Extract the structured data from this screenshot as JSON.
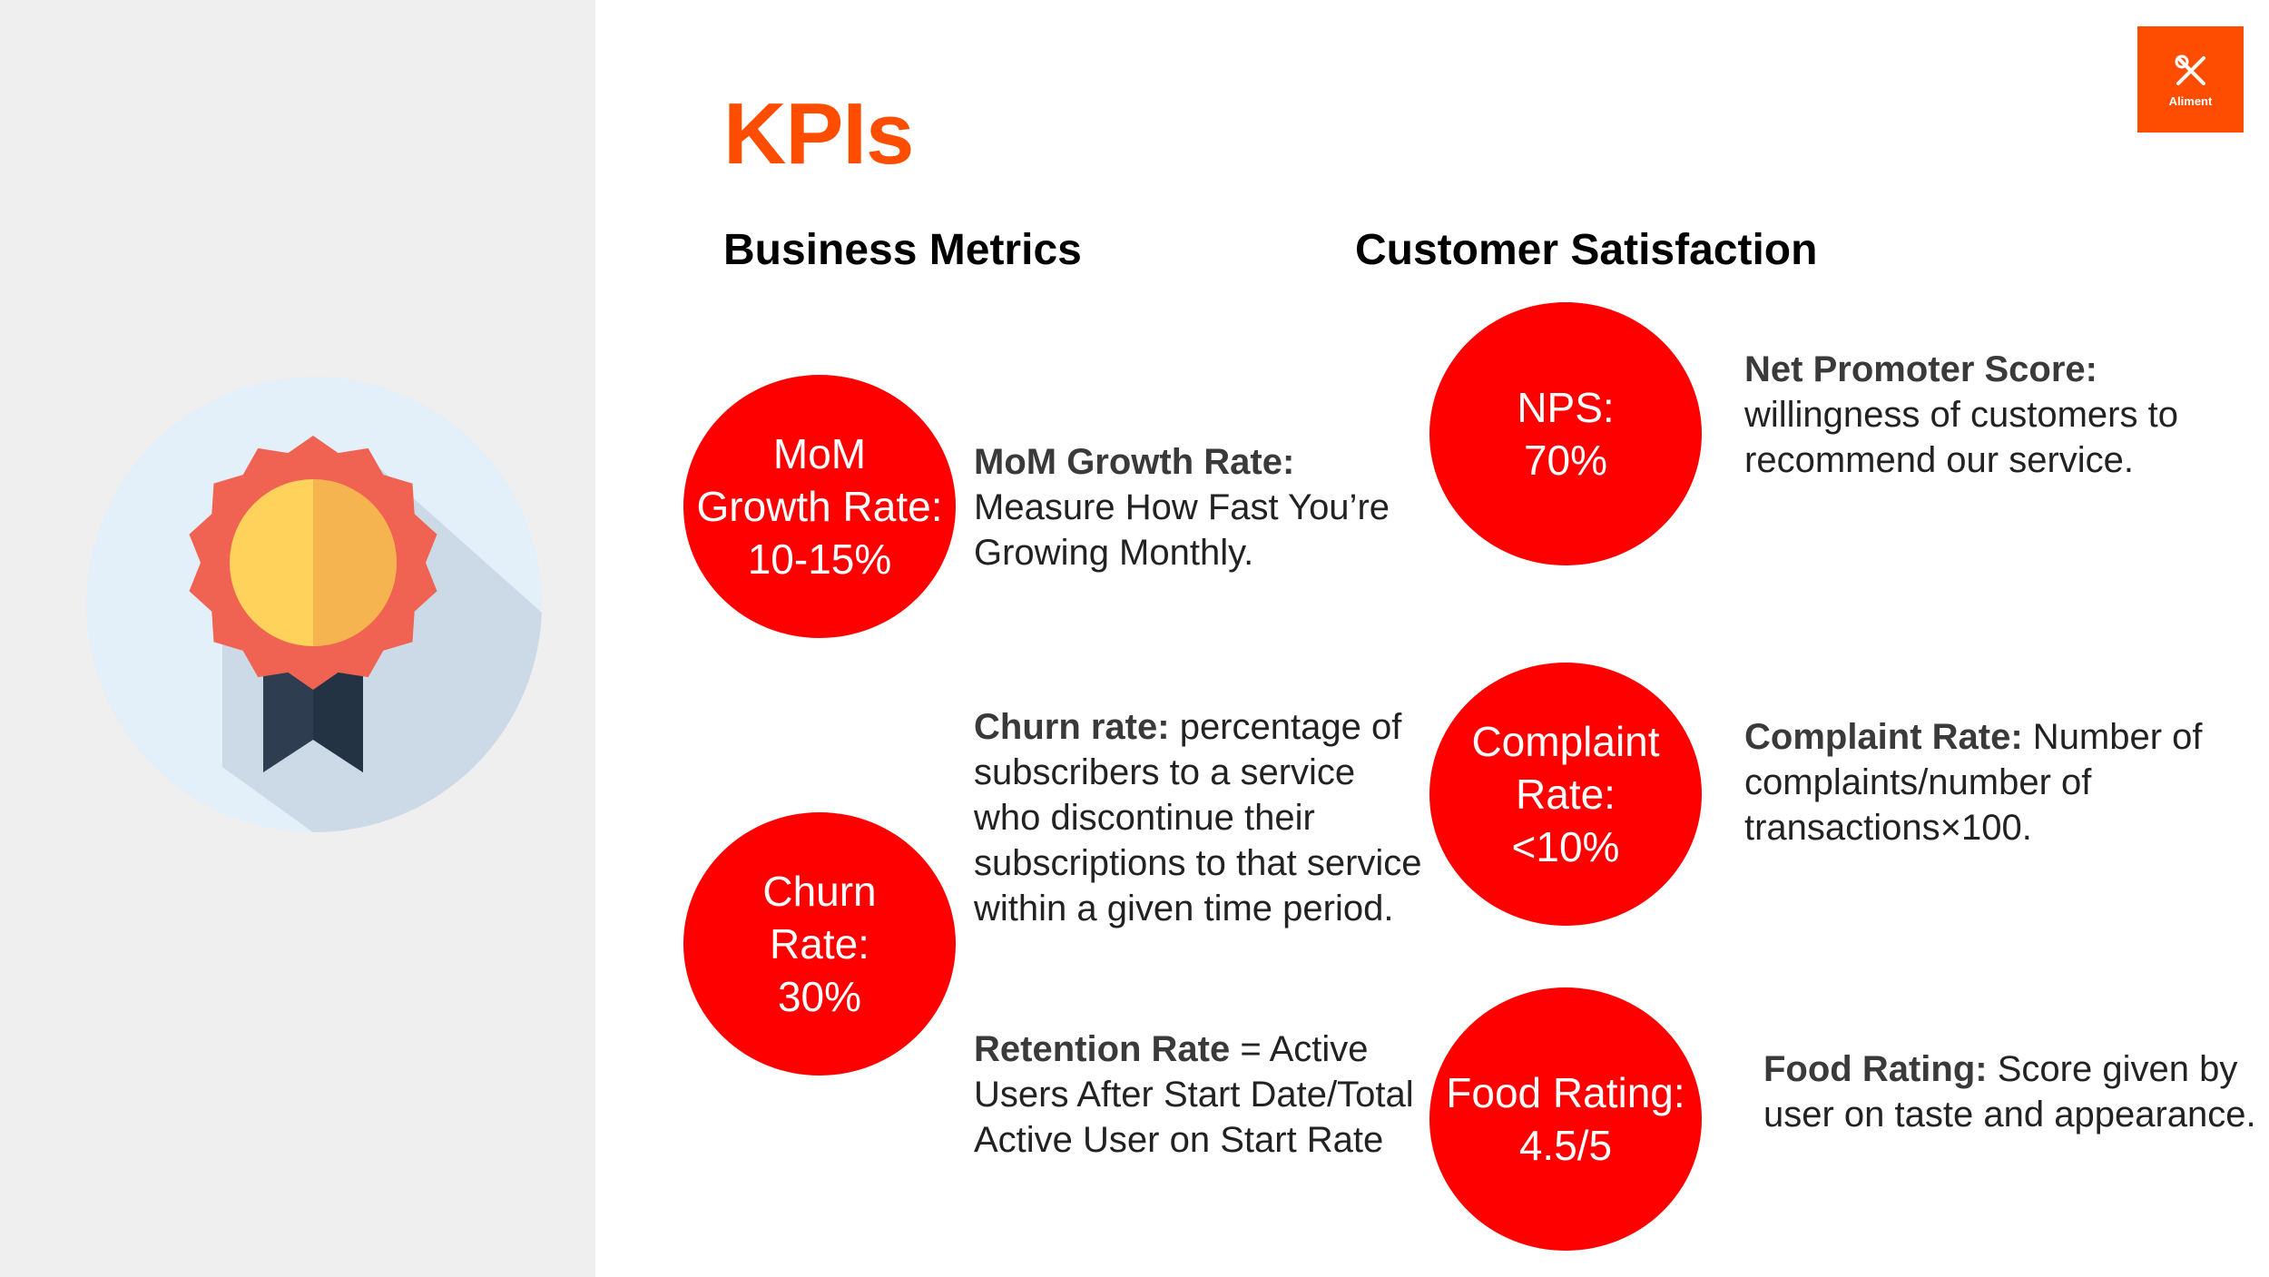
{
  "title": "KPIs",
  "brand": {
    "name": "Aliment",
    "accent": "#ff4d00",
    "circle_color": "#ff0000"
  },
  "sections": {
    "business": "Business Metrics",
    "customer": "Customer Satisfaction"
  },
  "kpis": {
    "mom": {
      "circle": "MoM\nGrowth Rate:\n10-15%",
      "label": "MoM Growth Rate:",
      "text": "Measure How Fast You’re Growing Monthly."
    },
    "churn": {
      "circle": "Churn\nRate:\n30%",
      "label": "Churn rate:",
      "text": " percentage of subscribers to a service who discontinue their subscriptions to that service within a given time period."
    },
    "retention": {
      "label": "Retention Rate",
      "text": " = Active Users After Start Date/Total Active User on Start Rate"
    },
    "nps": {
      "circle": "NPS:\n70%",
      "label": "Net Promoter Score:",
      "text": "willingness of customers to recommend our service."
    },
    "complaint": {
      "circle": "Complaint\nRate:\n<10%",
      "label": "Complaint Rate:",
      "text": " Number of complaints/number of transactions×100."
    },
    "food": {
      "circle": "Food Rating:\n4.5/5",
      "label": "Food Rating:",
      "text": " Score given by user on taste and appearance."
    }
  },
  "icons": {
    "medal": "medal-icon",
    "logo": "fork-knife-icon"
  }
}
